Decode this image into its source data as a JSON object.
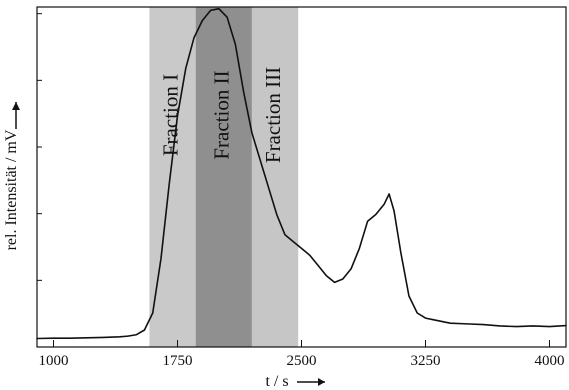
{
  "chart_data": {
    "type": "line",
    "title": "",
    "xlabel": "t / s",
    "ylabel": "rel. Intensität / mV",
    "xlim": [
      900,
      4100
    ],
    "ylim": [
      0,
      100
    ],
    "x_ticks": [
      1000,
      1750,
      2500,
      3250,
      4000
    ],
    "x_tick_labels": [
      "1000",
      "1750",
      "2500",
      "3250",
      "4000"
    ],
    "y_tick_count": 5,
    "grid": false,
    "legend": "none",
    "series": [
      {
        "values_x": [
          900,
          1000,
          1100,
          1200,
          1300,
          1400,
          1450,
          1500,
          1550,
          1600,
          1650,
          1700,
          1750,
          1800,
          1850,
          1900,
          1950,
          2000,
          2050,
          2100,
          2150,
          2200,
          2250,
          2300,
          2350,
          2400,
          2450,
          2500,
          2550,
          2600,
          2650,
          2700,
          2750,
          2800,
          2850,
          2900,
          2950,
          3000,
          3030,
          3060,
          3100,
          3150,
          3200,
          3250,
          3300,
          3400,
          3500,
          3600,
          3700,
          3800,
          3900,
          4000,
          4100
        ],
        "values_y": [
          2.5,
          2.6,
          2.6,
          2.7,
          2.8,
          3.0,
          3.2,
          3.6,
          5.0,
          10.0,
          26.0,
          48.0,
          68.0,
          82.0,
          91.0,
          96.0,
          99.0,
          99.5,
          97.0,
          89.0,
          75.0,
          63.0,
          55.0,
          47.0,
          39.0,
          33.0,
          31.0,
          29.0,
          27.0,
          24.0,
          21.0,
          19.0,
          20.0,
          23.0,
          29.0,
          37.0,
          39.0,
          42.0,
          45.0,
          40.0,
          28.0,
          15.0,
          10.0,
          8.5,
          8.0,
          7.0,
          6.8,
          6.6,
          6.2,
          6.0,
          6.2,
          6.0,
          6.3
        ]
      }
    ],
    "fractions": [
      {
        "label": "Fraction I",
        "x_start": 1580,
        "x_end": 1860,
        "color": "#c9c9c9"
      },
      {
        "label": "Fraction II",
        "x_start": 1860,
        "x_end": 2200,
        "color": "#8f8f8f"
      },
      {
        "label": "Fraction III",
        "x_start": 2200,
        "x_end": 2480,
        "color": "#c6c6c6"
      }
    ],
    "colors": {
      "line": "#111111",
      "axis": "#111111",
      "text": "#111111"
    }
  }
}
